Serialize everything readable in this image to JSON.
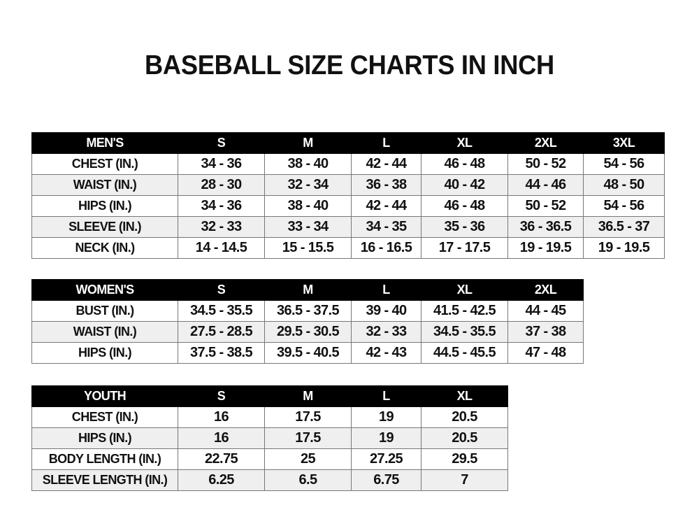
{
  "title": "BASEBALL SIZE CHARTS IN INCH",
  "tables": [
    {
      "id": "mens",
      "headers": [
        "MEN'S",
        "S",
        "M",
        "L",
        "XL",
        "2XL",
        "3XL"
      ],
      "rows": [
        [
          "CHEST (IN.)",
          "34 - 36",
          "38 - 40",
          "42 - 44",
          "46 - 48",
          "50 - 52",
          "54 - 56"
        ],
        [
          "WAIST (IN.)",
          "28 - 30",
          "32 - 34",
          "36 - 38",
          "40 - 42",
          "44 - 46",
          "48 - 50"
        ],
        [
          "HIPS (IN.)",
          "34 - 36",
          "38 - 40",
          "42 - 44",
          "46 - 48",
          "50 - 52",
          "54 - 56"
        ],
        [
          "SLEEVE (IN.)",
          "32 - 33",
          "33 - 34",
          "34 - 35",
          "35 - 36",
          "36 - 36.5",
          "36.5 - 37"
        ],
        [
          "NECK (IN.)",
          "14 - 14.5",
          "15 - 15.5",
          "16 - 16.5",
          "17 - 17.5",
          "19 - 19.5",
          "19 - 19.5"
        ]
      ]
    },
    {
      "id": "womens",
      "headers": [
        "WOMEN'S",
        "S",
        "M",
        "L",
        "XL",
        "2XL"
      ],
      "rows": [
        [
          "BUST (IN.)",
          "34.5 - 35.5",
          "36.5 - 37.5",
          "39 - 40",
          "41.5 - 42.5",
          "44 - 45"
        ],
        [
          "WAIST (IN.)",
          "27.5 - 28.5",
          "29.5 - 30.5",
          "32 - 33",
          "34.5 - 35.5",
          "37 - 38"
        ],
        [
          "HIPS (IN.)",
          "37.5 - 38.5",
          "39.5 - 40.5",
          "42 - 43",
          "44.5 - 45.5",
          "47 - 48"
        ]
      ]
    },
    {
      "id": "youth",
      "headers": [
        "YOUTH",
        "S",
        "M",
        "L",
        "XL"
      ],
      "rows": [
        [
          "CHEST (IN.)",
          "16",
          "17.5",
          "19",
          "20.5"
        ],
        [
          "HIPS (IN.)",
          "16",
          "17.5",
          "19",
          "20.5"
        ],
        [
          "BODY LENGTH (IN.)",
          "22.75",
          "25",
          "27.25",
          "29.5"
        ],
        [
          "SLEEVE LENGTH (IN.)",
          "6.25",
          "6.5",
          "6.75",
          "7"
        ]
      ]
    }
  ]
}
